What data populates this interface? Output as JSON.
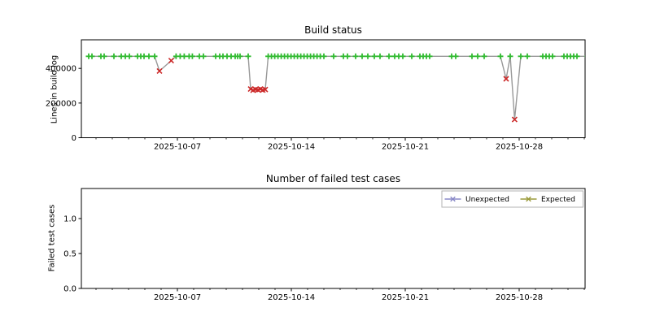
{
  "figure": {
    "background": "#ffffff",
    "frame_color": "#000000"
  },
  "chart_data": [
    {
      "type": "line",
      "title": "Build status",
      "xlabel": "",
      "ylabel": "Lines in build log",
      "ylim": [
        0,
        565000
      ],
      "yticks": [
        {
          "v": 0,
          "label": "0"
        },
        {
          "v": 200000,
          "label": "200000"
        },
        {
          "v": 400000,
          "label": "400000"
        }
      ],
      "x_start_date": "2025-10-01",
      "xlim_days": [
        0.1,
        31.05
      ],
      "xticks": [
        {
          "day": 6,
          "label": "2025-10-07"
        },
        {
          "day": 13,
          "label": "2025-10-14"
        },
        {
          "day": 20,
          "label": "2025-10-21"
        },
        {
          "day": 27,
          "label": "2025-10-28"
        }
      ],
      "minor_xtick_interval_days": 1,
      "grid": false,
      "line_color": "#999999",
      "markers": {
        "pass": {
          "glyph": "plus",
          "color": "#32bb32",
          "meaning": "successful build"
        },
        "fail": {
          "glyph": "x",
          "color": "#cc2929",
          "meaning": "failed/short build"
        }
      },
      "builds": [
        [
          0.55,
          470000,
          "p"
        ],
        [
          0.75,
          470000,
          "p"
        ],
        [
          1.3,
          470000,
          "p"
        ],
        [
          1.5,
          470000,
          "p"
        ],
        [
          2.1,
          470000,
          "p"
        ],
        [
          2.55,
          470000,
          "p"
        ],
        [
          2.8,
          470000,
          "p"
        ],
        [
          3.05,
          470000,
          "p"
        ],
        [
          3.55,
          470000,
          "p"
        ],
        [
          3.75,
          470000,
          "p"
        ],
        [
          3.95,
          470000,
          "p"
        ],
        [
          4.25,
          470000,
          "p"
        ],
        [
          4.6,
          470000,
          "p"
        ],
        [
          4.9,
          385000,
          "f"
        ],
        [
          5.62,
          445000,
          "f"
        ],
        [
          5.92,
          470000,
          "p"
        ],
        [
          6.17,
          470000,
          "p"
        ],
        [
          6.42,
          470000,
          "p"
        ],
        [
          6.72,
          470000,
          "p"
        ],
        [
          6.92,
          470000,
          "p"
        ],
        [
          7.35,
          470000,
          "p"
        ],
        [
          7.6,
          470000,
          "p"
        ],
        [
          8.35,
          470000,
          "p"
        ],
        [
          8.6,
          470000,
          "p"
        ],
        [
          8.8,
          470000,
          "p"
        ],
        [
          9.05,
          470000,
          "p"
        ],
        [
          9.3,
          470000,
          "p"
        ],
        [
          9.55,
          470000,
          "p"
        ],
        [
          9.7,
          470000,
          "p"
        ],
        [
          9.85,
          470000,
          "p"
        ],
        [
          10.35,
          470000,
          "p"
        ],
        [
          10.5,
          281000,
          "f"
        ],
        [
          10.65,
          274000,
          "f"
        ],
        [
          10.8,
          279000,
          "f"
        ],
        [
          10.95,
          276000,
          "f"
        ],
        [
          11.1,
          281000,
          "f"
        ],
        [
          11.25,
          275000,
          "f"
        ],
        [
          11.4,
          278000,
          "f"
        ],
        [
          11.58,
          470000,
          "p"
        ],
        [
          11.78,
          470000,
          "p"
        ],
        [
          11.98,
          470000,
          "p"
        ],
        [
          12.18,
          470000,
          "p"
        ],
        [
          12.38,
          470000,
          "p"
        ],
        [
          12.58,
          470000,
          "p"
        ],
        [
          12.78,
          470000,
          "p"
        ],
        [
          12.98,
          470000,
          "p"
        ],
        [
          13.18,
          470000,
          "p"
        ],
        [
          13.38,
          470000,
          "p"
        ],
        [
          13.58,
          470000,
          "p"
        ],
        [
          13.78,
          470000,
          "p"
        ],
        [
          13.98,
          470000,
          "p"
        ],
        [
          14.18,
          470000,
          "p"
        ],
        [
          14.38,
          470000,
          "p"
        ],
        [
          14.58,
          470000,
          "p"
        ],
        [
          14.78,
          470000,
          "p"
        ],
        [
          15.0,
          470000,
          "p"
        ],
        [
          15.6,
          470000,
          "p"
        ],
        [
          16.2,
          470000,
          "p"
        ],
        [
          16.45,
          470000,
          "p"
        ],
        [
          16.95,
          470000,
          "p"
        ],
        [
          17.35,
          470000,
          "p"
        ],
        [
          17.7,
          470000,
          "p"
        ],
        [
          18.1,
          470000,
          "p"
        ],
        [
          18.45,
          470000,
          "p"
        ],
        [
          19.0,
          470000,
          "p"
        ],
        [
          19.35,
          470000,
          "p"
        ],
        [
          19.6,
          470000,
          "p"
        ],
        [
          19.85,
          470000,
          "p"
        ],
        [
          20.4,
          470000,
          "p"
        ],
        [
          20.9,
          470000,
          "p"
        ],
        [
          21.1,
          470000,
          "p"
        ],
        [
          21.3,
          470000,
          "p"
        ],
        [
          21.5,
          470000,
          "p"
        ],
        [
          22.85,
          470000,
          "p"
        ],
        [
          23.1,
          470000,
          "p"
        ],
        [
          24.1,
          470000,
          "p"
        ],
        [
          24.45,
          470000,
          "p"
        ],
        [
          24.85,
          470000,
          "p"
        ],
        [
          25.85,
          470000,
          "p"
        ],
        [
          26.2,
          340000,
          "f"
        ],
        [
          26.45,
          470000,
          "p"
        ],
        [
          26.72,
          105000,
          "f"
        ],
        [
          27.1,
          470000,
          "p"
        ],
        [
          27.5,
          470000,
          "p"
        ],
        [
          28.45,
          470000,
          "p"
        ],
        [
          28.65,
          470000,
          "p"
        ],
        [
          28.85,
          470000,
          "p"
        ],
        [
          29.05,
          470000,
          "p"
        ],
        [
          29.75,
          470000,
          "p"
        ],
        [
          29.95,
          470000,
          "p"
        ],
        [
          30.15,
          470000,
          "p"
        ],
        [
          30.35,
          470000,
          "p"
        ],
        [
          30.55,
          470000,
          "p"
        ],
        [
          31.2,
          470000,
          "p"
        ]
      ]
    },
    {
      "type": "line",
      "title": "Number of failed test cases",
      "xlabel": "",
      "ylabel": "Failed test cases",
      "ylim": [
        0,
        1.43
      ],
      "yticks": [
        {
          "v": 0,
          "label": "0.0"
        },
        {
          "v": 0.5,
          "label": "0.5"
        },
        {
          "v": 1,
          "label": "1.0"
        }
      ],
      "x_start_date": "2025-10-01",
      "xlim_days": [
        0.1,
        31.05
      ],
      "xticks": [
        {
          "day": 6,
          "label": "2025-10-07"
        },
        {
          "day": 13,
          "label": "2025-10-14"
        },
        {
          "day": 20,
          "label": "2025-10-21"
        },
        {
          "day": 27,
          "label": "2025-10-28"
        }
      ],
      "minor_xtick_interval_days": 1,
      "grid": false,
      "legend": {
        "position": "upper right",
        "border_color": "#b3b3b3",
        "entries": [
          {
            "label": "Unexpected",
            "color": "#8a8ac8",
            "marker": "x"
          },
          {
            "label": "Expected",
            "color": "#9a9a3a",
            "marker": "x"
          }
        ]
      },
      "series": [
        {
          "name": "Unexpected",
          "color": "#8a8ac8",
          "points": []
        },
        {
          "name": "Expected",
          "color": "#9a9a3a",
          "points": []
        }
      ]
    }
  ]
}
